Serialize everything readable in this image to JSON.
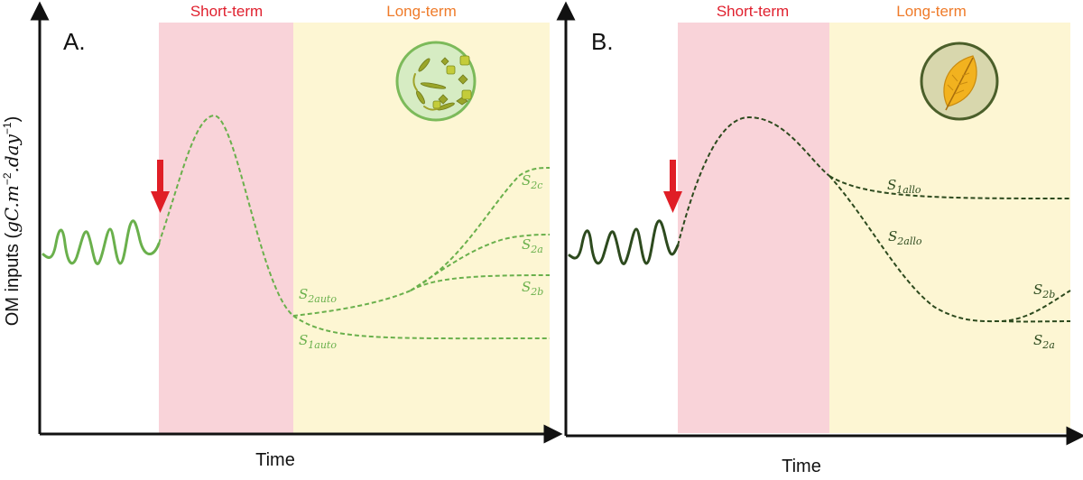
{
  "colors": {
    "short_term_bg": "#f9d3d9",
    "long_term_bg": "#fdf6d3",
    "short_term_text": "#e0202e",
    "long_term_text": "#ef7b2a",
    "auto_curve": "#6ab04c",
    "allo_curve": "#2d4a1e",
    "arrow": "#e01e26",
    "axis": "#111111"
  },
  "y_axis_label": {
    "text": "OM inputs (",
    "math": "gC.m",
    "exp1": "−2",
    "mid": ".day",
    "exp2": "−1",
    "close": ")"
  },
  "panels": [
    {
      "letter": "A.",
      "short_term": "Short-term",
      "long_term": "Long-term",
      "x_label": "Time",
      "icon": "phytoplankton-circle-icon",
      "curve_labels": [
        {
          "base": "S",
          "sub": "2c"
        },
        {
          "base": "S",
          "sub": "2a"
        },
        {
          "base": "S",
          "sub": "2b"
        },
        {
          "base": "S",
          "sub": "2auto"
        },
        {
          "base": "S",
          "sub": "1auto"
        }
      ]
    },
    {
      "letter": "B.",
      "short_term": "Short-term",
      "long_term": "Long-term",
      "x_label": "Time",
      "icon": "leaf-circle-icon",
      "curve_labels": [
        {
          "base": "S",
          "sub": "1allo"
        },
        {
          "base": "S",
          "sub": "2allo"
        },
        {
          "base": "S",
          "sub": "2b"
        },
        {
          "base": "S",
          "sub": "2a"
        }
      ]
    }
  ]
}
